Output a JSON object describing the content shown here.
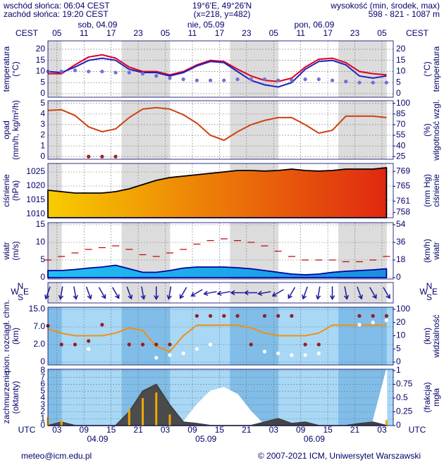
{
  "header": {
    "sunrise": "wschód słońca: 06:04 CEST",
    "sunset": "zachód słońca: 19:20 CEST",
    "coords": "19°6'E, 49°26'N",
    "grid": "(x=218, y=482)",
    "elevation_title": "wysokość (min, środek, max)",
    "elevation": "598 - 821 - 1087 m"
  },
  "footer": {
    "email": "meteo@icm.edu.pl",
    "copyright": "© 2007-2021 ICM, Uniwersytet Warszawski"
  },
  "time_axis": {
    "x": [
      1,
      4,
      7,
      10,
      13,
      16,
      19,
      22,
      25,
      28,
      31,
      34,
      37,
      40,
      43,
      46,
      49,
      52,
      55,
      58,
      61,
      64,
      67,
      70,
      73,
      76
    ],
    "xlim": [
      1,
      77.5
    ],
    "top_zone": "CEST",
    "bottom_zone": "UTC",
    "xticks": [
      {
        "value": 3,
        "label": "03"
      },
      {
        "value": 9,
        "label": "09"
      },
      15,
      21,
      {
        "value": 27,
        "label": "03"
      },
      {
        "value": 33,
        "label": "09"
      },
      {
        "value": 39,
        "label": "15"
      },
      {
        "value": 45,
        "label": "21"
      },
      {
        "value": 51,
        "label": "03"
      },
      {
        "value": 57,
        "label": "09"
      },
      {
        "value": 63,
        "label": "15"
      },
      {
        "value": 69,
        "label": "21"
      },
      {
        "value": 75,
        "label": "03"
      }
    ],
    "top_xticks": [
      {
        "value": 3,
        "label": "05"
      },
      {
        "value": 9,
        "label": "11"
      },
      {
        "value": 15,
        "label": "17"
      },
      {
        "value": 21,
        "label": "23"
      },
      {
        "value": 27,
        "label": "05"
      },
      {
        "value": 33,
        "label": "11"
      },
      {
        "value": 39,
        "label": "17"
      },
      {
        "value": 45,
        "label": "23"
      },
      {
        "value": 51,
        "label": "05"
      },
      {
        "value": 57,
        "label": "11"
      },
      {
        "value": 63,
        "label": "17"
      },
      {
        "value": 69,
        "label": "23"
      },
      {
        "value": 75,
        "label": "05"
      }
    ],
    "top_dates": [
      {
        "value": 12,
        "label": "sob, 04.09"
      },
      {
        "value": 36,
        "label": "nie, 05.09"
      },
      {
        "value": 60,
        "label": "pon, 06.09"
      }
    ],
    "bottom_dates": [
      {
        "value": 12,
        "label": "04.09"
      },
      {
        "value": 36,
        "label": "05.09"
      },
      {
        "value": 60,
        "label": "06.09"
      }
    ]
  },
  "chart_data": [
    {
      "type": "line",
      "ylabel": [
        "temperatura",
        "(°C)"
      ],
      "y2label": [
        "(°C)",
        "temperatura"
      ],
      "ylim": [
        -1.6,
        23.8
      ],
      "yticks": [
        0,
        5,
        10,
        15,
        20
      ],
      "mirror_ticks": true,
      "grid": true,
      "series": [
        {
          "style": "line",
          "color": "#e00020",
          "values": [
            9,
            9,
            13,
            16.5,
            17.5,
            16,
            12,
            10,
            10,
            8.5,
            10,
            13,
            15,
            14.5,
            11,
            8,
            6,
            5.5,
            7,
            12,
            15.5,
            16,
            14,
            10,
            9,
            8.5
          ]
        },
        {
          "style": "line",
          "color": "#2020c0",
          "values": [
            10,
            9.5,
            12,
            15,
            16,
            15,
            11,
            9.5,
            9.5,
            8,
            9.5,
            12.5,
            14.5,
            14,
            10,
            6,
            4,
            3,
            5,
            11,
            14.5,
            15,
            13,
            8,
            7,
            8
          ]
        },
        {
          "style": "dots",
          "color": "#7070d8",
          "values": [
            10,
            10,
            10.5,
            10,
            10,
            9.5,
            9.5,
            9,
            8,
            7,
            6.5,
            6,
            6,
            6,
            6.5,
            6.5,
            6.5,
            6,
            6,
            6.5,
            6.5,
            6,
            5.5,
            5,
            5,
            5
          ]
        }
      ]
    },
    {
      "type": "line",
      "ylabel": [
        "opad",
        "(mm/h, kg/m²/h)"
      ],
      "y2label": [
        "(%)",
        "wilgotność wzgl."
      ],
      "ylim": [
        -0.25,
        5.25
      ],
      "yticks": [
        0,
        1,
        2,
        3,
        4,
        5
      ],
      "y2lim": [
        21.25,
        103.75
      ],
      "y2ticks": [
        25,
        40,
        55,
        70,
        85,
        100
      ],
      "grid": true,
      "series": [
        {
          "style": "line",
          "axis": "y2",
          "color": "#d04010",
          "values": [
            90,
            91,
            83,
            67,
            60,
            64,
            80,
            92,
            94,
            92,
            84,
            72,
            55,
            48,
            60,
            70,
            76,
            80,
            80,
            70,
            58,
            62,
            82,
            82,
            82,
            80
          ]
        },
        {
          "style": "dots",
          "color": "#a02020",
          "values": [
            null,
            null,
            null,
            0,
            0,
            0,
            null,
            null,
            null,
            null,
            null,
            null,
            null,
            null,
            null,
            null,
            null,
            null,
            null,
            null,
            null,
            null,
            null,
            null,
            null,
            null
          ]
        }
      ]
    },
    {
      "type": "area",
      "ylabel": [
        "ciśnienie",
        "(hPa)"
      ],
      "y2label": [
        "(mm Hg)",
        "ciśnienie"
      ],
      "ylim": [
        1008.75,
        1028
      ],
      "yticks": [
        1010,
        1015,
        1020,
        1025
      ],
      "y2lim": [
        756.6,
        771.1
      ],
      "y2ticks": [
        758,
        761,
        765,
        769
      ],
      "grid": true,
      "series": [
        {
          "style": "area",
          "color": "#000000",
          "fill": [
            "#f8cc00",
            "#e02810"
          ],
          "values": [
            1018.5,
            1018,
            1017.5,
            1017.5,
            1017.5,
            1018,
            1019,
            1020.5,
            1022,
            1023,
            1023.5,
            1024,
            1024.5,
            1025,
            1025.5,
            1025.5,
            1025.3,
            1025.5,
            1026,
            1025.5,
            1025.3,
            1025.5,
            1026,
            1026,
            1026,
            1026.5
          ]
        }
      ]
    },
    {
      "type": "area",
      "ylabel": [
        "wiatr",
        "(m/s)"
      ],
      "y2label": [
        "(km/h)",
        "wiatr"
      ],
      "ylim": [
        -0.4,
        15.6
      ],
      "yticks": [
        0,
        5,
        10,
        15
      ],
      "y2lim": [
        -1.44,
        56.16
      ],
      "y2ticks": [
        0,
        18,
        36,
        54
      ],
      "grid": true,
      "series": [
        {
          "style": "area",
          "color": "#0000a0",
          "fill": [
            "#20c0f0",
            "#1890e0"
          ],
          "values": [
            2,
            2,
            2.3,
            2.7,
            3,
            3.5,
            2.5,
            1.5,
            1.5,
            2,
            2.7,
            3,
            3,
            3,
            2.8,
            2.5,
            2,
            1.5,
            1,
            0.8,
            1,
            1.5,
            1.8,
            2,
            2.2,
            2.5
          ]
        },
        {
          "style": "dashes",
          "color": "#c00000",
          "values": [
            5,
            6,
            7,
            8,
            8.5,
            9,
            8,
            6.5,
            6,
            7,
            8,
            9.5,
            10.5,
            11,
            10.5,
            10,
            9,
            7.5,
            6,
            5,
            5,
            5,
            4.5,
            4.5,
            5,
            6
          ]
        }
      ]
    },
    {
      "type": "arrows",
      "compass": {
        "N": "N",
        "S": "S",
        "W": "W",
        "E": "E"
      },
      "color": "#1a1aa0",
      "values": [
        20,
        10,
        350,
        340,
        330,
        330,
        340,
        350,
        0,
        10,
        30,
        60,
        80,
        80,
        90,
        90,
        80,
        60,
        30,
        20,
        10,
        0,
        350,
        340,
        330,
        330
      ]
    },
    {
      "type": "line",
      "scale": "piecewise",
      "ylabel": [
        "pion. rozciągł. chm.",
        "(km)"
      ],
      "y2label": [
        "(km)",
        "widzialność"
      ],
      "ylim": [
        0,
        15
      ],
      "yticks": [
        0,
        {
          "value": 2,
          "label": "2.0"
        },
        {
          "value": 7,
          "label": "7.0"
        },
        {
          "value": 15,
          "label": "15.0"
        }
      ],
      "y2lim": [
        0,
        100
      ],
      "y2ticks": [
        0,
        5,
        10,
        20,
        100
      ],
      "grid": true,
      "series": [
        {
          "style": "line",
          "axis": "y2",
          "color": "#f09010",
          "values": [
            15,
            12,
            10,
            10,
            10,
            12,
            16,
            14,
            6,
            4,
            10,
            18,
            18,
            18,
            18,
            16,
            12,
            10,
            10,
            10,
            12,
            18,
            18,
            18,
            18,
            18
          ]
        },
        {
          "style": "dots",
          "color": "#902020",
          "values": [
            7.5,
            2,
            2,
            3,
            8,
            null,
            2,
            2,
            2,
            2,
            null,
            12,
            12,
            12,
            12,
            2,
            12,
            12,
            12,
            2,
            2,
            null,
            null,
            12,
            12,
            12
          ]
        },
        {
          "style": "dots",
          "color": "#ffffff",
          "values": [
            null,
            null,
            null,
            1.5,
            null,
            null,
            null,
            null,
            0.5,
            0.8,
            1,
            1.5,
            2,
            null,
            null,
            null,
            1.2,
            1,
            0.8,
            0.8,
            1,
            null,
            null,
            8,
            9,
            10
          ]
        }
      ]
    },
    {
      "type": "area",
      "ylabel": [
        "zachmurzenie",
        "(oktanty)"
      ],
      "y2label": [
        "(frakcja)",
        "mgła"
      ],
      "ylim": [
        0,
        8.2
      ],
      "yticks": [
        0,
        1,
        2,
        3,
        4,
        5,
        6,
        7,
        8
      ],
      "y2lim": [
        0,
        1.025
      ],
      "y2ticks": [
        0,
        0.25,
        0.5,
        0.75,
        1
      ],
      "grid": true,
      "series": [
        {
          "style": "area",
          "color": "#ffffff",
          "fill": [
            "#ffffff",
            "#ffffff"
          ],
          "values": [
            0,
            0,
            0,
            0,
            0,
            0,
            0,
            0,
            0,
            0,
            0.5,
            3,
            5,
            5.5,
            4.5,
            2,
            0,
            0,
            0,
            0,
            0,
            0,
            0,
            0,
            0.5,
            8
          ]
        },
        {
          "style": "area",
          "color": "#404040",
          "fill": [
            "#505050",
            "#404040"
          ],
          "values": [
            0,
            0.5,
            0,
            0,
            0,
            0,
            2,
            5,
            6,
            3,
            0.5,
            0.3,
            0,
            0,
            0,
            0,
            0.5,
            1,
            0.3,
            0.5,
            0,
            0,
            0,
            0.3,
            0.5,
            0
          ]
        },
        {
          "style": "bars",
          "axis": "y2",
          "color": "#f0a800",
          "values": [
            0.15,
            0.1,
            0,
            0,
            0,
            0,
            0.3,
            0.5,
            0.6,
            0.2,
            0,
            0,
            0,
            0,
            0,
            0,
            0,
            0,
            0,
            0,
            0,
            0,
            0,
            0,
            0,
            0.1
          ]
        }
      ]
    }
  ]
}
